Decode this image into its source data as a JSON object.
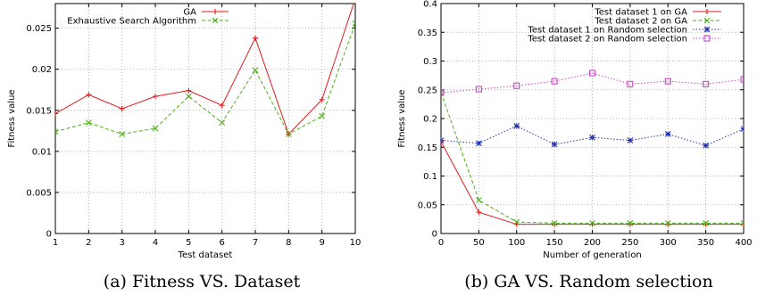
{
  "chart_data": [
    {
      "type": "line",
      "caption": "(a) Fitness VS. Dataset",
      "xlabel": "Test dataset",
      "ylabel": "Fitness value",
      "x": [
        1,
        2,
        3,
        4,
        5,
        6,
        7,
        8,
        9,
        10
      ],
      "xlim": [
        1,
        10
      ],
      "ylim": [
        0,
        0.028
      ],
      "xticks": [
        "1",
        "2",
        "3",
        "4",
        "5",
        "6",
        "7",
        "8",
        "9",
        "10"
      ],
      "yticks": [
        "0",
        "0.005",
        "0.01",
        "0.015",
        "0.02",
        "0.025"
      ],
      "grid": true,
      "legend_position": "top-left",
      "series": [
        {
          "name": "GA",
          "color": "#e41a1c",
          "dash": "solid",
          "marker": "plus",
          "values": [
            0.0146,
            0.0169,
            0.0152,
            0.0167,
            0.0174,
            0.0156,
            0.0238,
            0.0121,
            0.0163,
            0.0286
          ]
        },
        {
          "name": "Exhaustive Search Algorithm",
          "color": "#4daf1a",
          "dash": "dashed",
          "marker": "cross",
          "values": [
            0.0124,
            0.0135,
            0.0121,
            0.0128,
            0.0167,
            0.0135,
            0.0199,
            0.0121,
            0.0143,
            0.0256
          ]
        }
      ]
    },
    {
      "type": "line",
      "caption": "(b) GA VS. Random selection",
      "xlabel": "Number of generation",
      "ylabel": "Fitness value",
      "x": [
        0,
        50,
        100,
        150,
        200,
        250,
        300,
        350,
        400
      ],
      "xlim": [
        0,
        400
      ],
      "ylim": [
        0,
        0.4
      ],
      "xticks": [
        "0",
        "50",
        "100",
        "150",
        "200",
        "250",
        "300",
        "350",
        "400"
      ],
      "yticks": [
        "0",
        "0.05",
        "0.1",
        "0.15",
        "0.2",
        "0.25",
        "0.3",
        "0.35",
        "0.4"
      ],
      "grid": true,
      "legend_position": "top-right",
      "series": [
        {
          "name": "Test dataset 1 on GA",
          "color": "#e41a1c",
          "dash": "solid",
          "marker": "plus",
          "values": [
            0.16,
            0.037,
            0.016,
            0.016,
            0.016,
            0.016,
            0.016,
            0.016,
            0.016
          ]
        },
        {
          "name": "Test dataset 2 on GA",
          "color": "#4daf1a",
          "dash": "dashed",
          "marker": "cross",
          "values": [
            0.245,
            0.058,
            0.02,
            0.018,
            0.018,
            0.018,
            0.018,
            0.018,
            0.018
          ]
        },
        {
          "name": "Test dataset 1 on Random selection",
          "color": "#2233aa",
          "dash": "dotted",
          "marker": "star",
          "values": [
            0.162,
            0.157,
            0.187,
            0.155,
            0.167,
            0.162,
            0.173,
            0.153,
            0.182
          ]
        },
        {
          "name": "Test dataset 2 on Random selection",
          "color": "#cc44cc",
          "dash": "dotted",
          "marker": "square",
          "values": [
            0.245,
            0.251,
            0.257,
            0.265,
            0.279,
            0.26,
            0.265,
            0.26,
            0.268
          ]
        }
      ]
    }
  ]
}
